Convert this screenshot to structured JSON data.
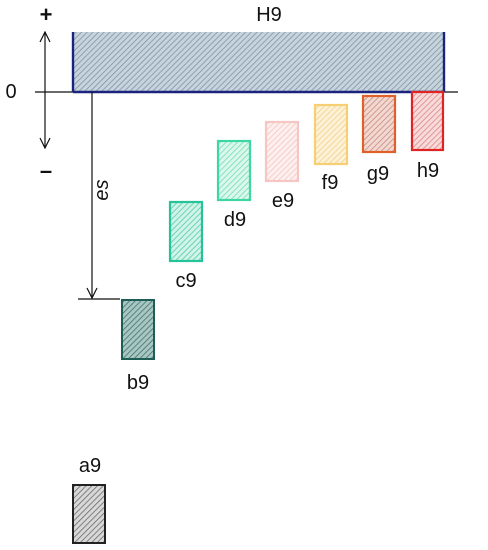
{
  "diagram": {
    "plus_sign": "+",
    "minus_sign": "–",
    "zero_label": "0",
    "deviation_label": "es",
    "hole_zone": {
      "label": "H9",
      "color": "#1a237e",
      "fill": "#9fb1bf"
    },
    "shaft_zones": [
      {
        "id": "a9",
        "label": "a9",
        "color": "#222222",
        "fill": "#8a8a8a"
      },
      {
        "id": "b9",
        "label": "b9",
        "color": "#1f5e57",
        "fill": "#5f9089"
      },
      {
        "id": "c9",
        "label": "c9",
        "color": "#26c39a",
        "fill": "#7fdcc0"
      },
      {
        "id": "d9",
        "label": "d9",
        "color": "#3ed6a3",
        "fill": "#9ce9cc"
      },
      {
        "id": "e9",
        "label": "e9",
        "color": "#f6c6c4",
        "fill": "#f8d6d4"
      },
      {
        "id": "f9",
        "label": "f9",
        "color": "#f6cf72",
        "fill": "#f8dc9c"
      },
      {
        "id": "g9",
        "label": "g9",
        "color": "#e0602a",
        "fill": "#d99a8c"
      },
      {
        "id": "h9",
        "label": "h9",
        "color": "#e02424",
        "fill": "#e99a9a"
      }
    ]
  }
}
